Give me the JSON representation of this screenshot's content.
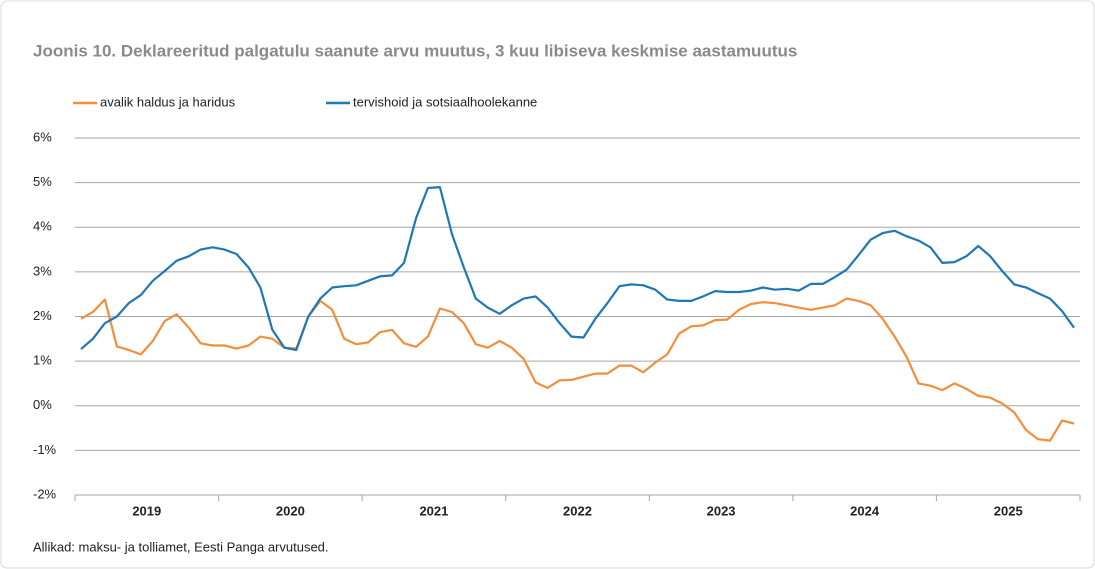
{
  "chart_data": {
    "type": "line",
    "title": "Joonis 10. Deklareeritud palgatulu saanute arvu muutus, 3 kuu libiseva keskmise aastamuutus",
    "source": "Allikad: maksu- ja tolliamet, Eesti Panga arvutused.",
    "categories": [
      null,
      null,
      null,
      null,
      null,
      "2019",
      null,
      null,
      null,
      null,
      null,
      null,
      null,
      null,
      null,
      null,
      null,
      "2020",
      null,
      null,
      null,
      null,
      null,
      null,
      null,
      null,
      null,
      null,
      null,
      "2021",
      null,
      null,
      null,
      null,
      null,
      null,
      null,
      null,
      null,
      null,
      null,
      "2022",
      null,
      null,
      null,
      null,
      null,
      null,
      null,
      null,
      null,
      null,
      null,
      "2023",
      null,
      null,
      null,
      null,
      null,
      null,
      null,
      null,
      null,
      null,
      null,
      "2024",
      null,
      null,
      null,
      null,
      null,
      null,
      null,
      null,
      null,
      null,
      null,
      "2025",
      null,
      null,
      null,
      null,
      null,
      null
    ],
    "series": [
      {
        "name": "avalik haldus ja haridus",
        "color": "#f28e3c",
        "values": [
          1.95,
          2.1,
          2.38,
          1.33,
          1.25,
          1.15,
          1.45,
          1.9,
          2.05,
          1.75,
          1.4,
          1.35,
          1.35,
          1.28,
          1.35,
          1.55,
          1.5,
          1.3,
          1.28,
          2.0,
          2.35,
          2.15,
          1.5,
          1.38,
          1.42,
          1.65,
          1.7,
          1.4,
          1.32,
          1.55,
          2.18,
          2.1,
          1.85,
          1.38,
          1.3,
          1.45,
          1.3,
          1.05,
          0.52,
          0.4,
          0.57,
          0.58,
          0.65,
          0.72,
          0.72,
          0.9,
          0.9,
          0.75,
          0.97,
          1.15,
          1.62,
          1.78,
          1.8,
          1.92,
          1.93,
          2.15,
          2.28,
          2.32,
          2.3,
          2.25,
          2.2,
          2.15,
          2.2,
          2.25,
          2.4,
          2.35,
          2.25,
          1.95,
          1.55,
          1.1,
          0.5,
          0.45,
          0.35,
          0.5,
          0.38,
          0.22,
          0.18,
          0.05,
          -0.15,
          -0.55,
          -0.75,
          -0.78,
          -0.33,
          -0.4
        ]
      },
      {
        "name": "tervishoid ja sotsiaalhoolekanne",
        "color": "#1f77b4",
        "values": [
          1.27,
          1.5,
          1.85,
          2.0,
          2.3,
          2.48,
          2.8,
          3.02,
          3.25,
          3.35,
          3.5,
          3.55,
          3.5,
          3.4,
          3.1,
          2.65,
          1.7,
          1.3,
          1.25,
          2.0,
          2.4,
          2.65,
          2.68,
          2.7,
          2.8,
          2.9,
          2.92,
          3.2,
          4.2,
          4.88,
          4.9,
          3.85,
          3.1,
          2.4,
          2.2,
          2.06,
          2.25,
          2.4,
          2.45,
          2.2,
          1.85,
          1.55,
          1.53,
          1.95,
          2.3,
          2.68,
          2.72,
          2.7,
          2.6,
          2.38,
          2.35,
          2.35,
          2.45,
          2.57,
          2.55,
          2.55,
          2.58,
          2.65,
          2.6,
          2.62,
          2.58,
          2.73,
          2.73,
          2.88,
          3.05,
          3.38,
          3.72,
          3.87,
          3.92,
          3.8,
          3.7,
          3.55,
          3.2,
          3.22,
          3.35,
          3.58,
          3.35,
          3.02,
          2.72,
          2.65,
          2.52,
          2.4,
          2.12,
          1.75
        ]
      }
    ],
    "ylim": [
      -2,
      6
    ],
    "yticks": [
      {
        "value": -2,
        "label": "-2%"
      },
      {
        "value": -1,
        "label": "-1%"
      },
      {
        "value": 0,
        "label": "0%"
      },
      {
        "value": 1,
        "label": "1%"
      },
      {
        "value": 2,
        "label": "2%"
      },
      {
        "value": 3,
        "label": "3%"
      },
      {
        "value": 4,
        "label": "4%"
      },
      {
        "value": 5,
        "label": "5%"
      },
      {
        "value": 6,
        "label": "6%"
      }
    ],
    "grid": true,
    "legend": "top"
  }
}
